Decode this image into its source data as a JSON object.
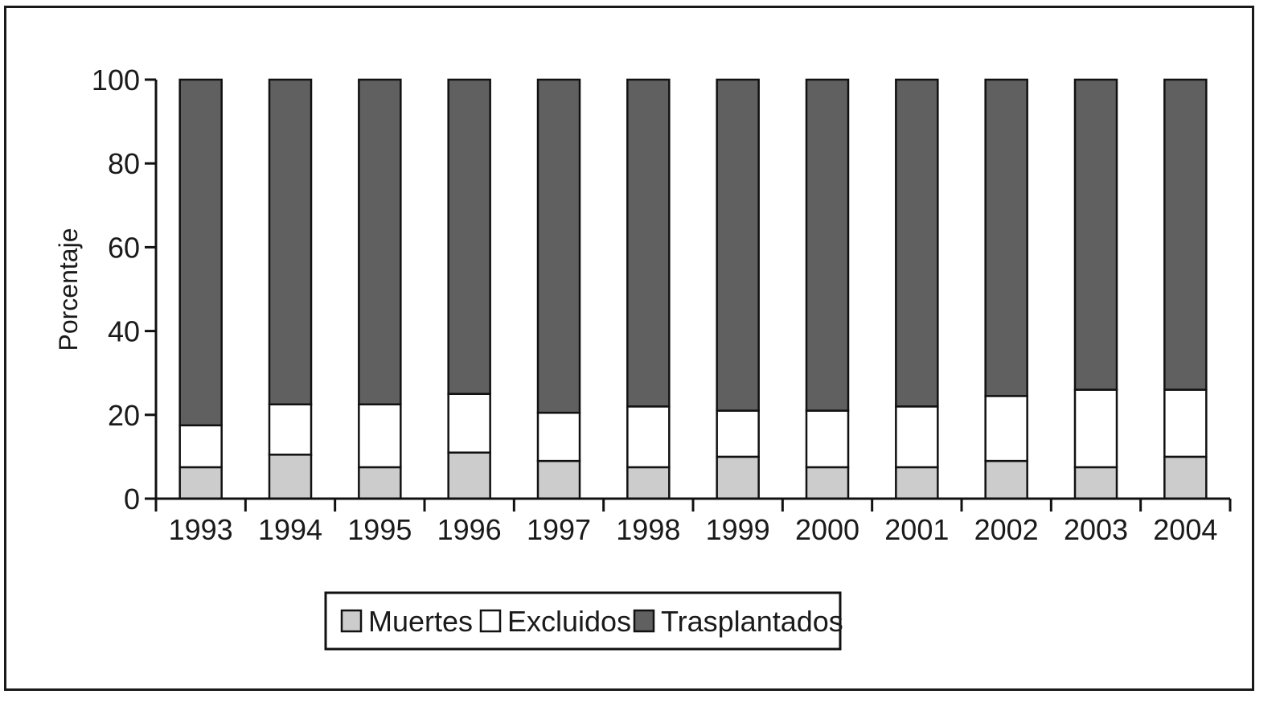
{
  "chart_data": {
    "type": "bar",
    "stacked": true,
    "categories": [
      "1993",
      "1994",
      "1995",
      "1996",
      "1997",
      "1998",
      "1999",
      "2000",
      "2001",
      "2002",
      "2003",
      "2004"
    ],
    "series": [
      {
        "name": "Muertes",
        "color": "#cccccc",
        "values": [
          7.5,
          10.5,
          7.5,
          11,
          9,
          7.5,
          10,
          7.5,
          7.5,
          9,
          7.5,
          10
        ]
      },
      {
        "name": "Excluidos",
        "color": "#ffffff",
        "values": [
          10,
          12,
          15,
          14,
          11.5,
          14.5,
          11,
          13.5,
          14.5,
          15.5,
          18.5,
          16
        ]
      },
      {
        "name": "Trasplantados",
        "color": "#606060",
        "values": [
          82.5,
          77.5,
          77.5,
          75,
          79.5,
          78,
          79,
          79,
          78,
          75.5,
          74,
          74
        ]
      }
    ],
    "ylabel": "Porcentaje",
    "xlabel": "",
    "ylim": [
      0,
      100
    ],
    "yticks": [
      0,
      20,
      40,
      60,
      80,
      100
    ],
    "grid": false,
    "legend_position": "bottom"
  }
}
